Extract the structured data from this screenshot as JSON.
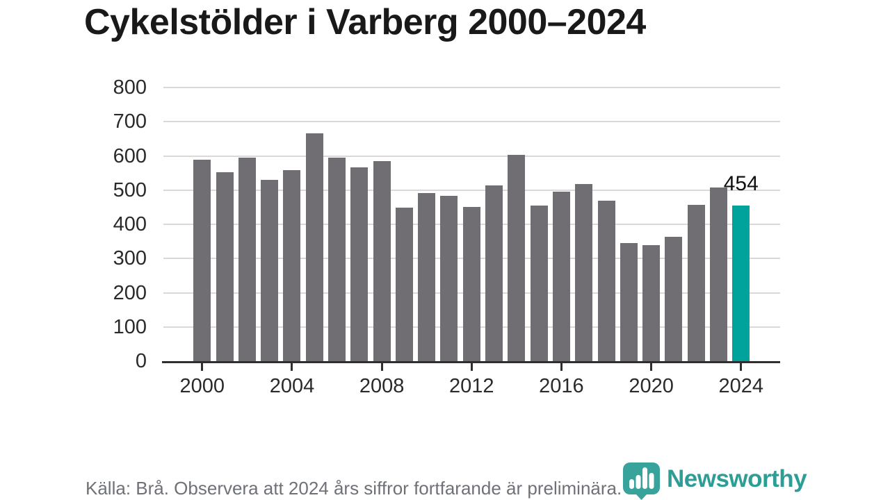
{
  "title": "Cykelstölder i Varberg 2000–2024",
  "chart_data": {
    "type": "bar",
    "categories": [
      2000,
      2001,
      2002,
      2003,
      2004,
      2005,
      2006,
      2007,
      2008,
      2009,
      2010,
      2011,
      2012,
      2013,
      2014,
      2015,
      2016,
      2017,
      2018,
      2019,
      2020,
      2021,
      2022,
      2023,
      2024
    ],
    "values": [
      588,
      553,
      594,
      530,
      559,
      667,
      594,
      567,
      584,
      448,
      491,
      484,
      451,
      513,
      603,
      455,
      496,
      518,
      470,
      345,
      340,
      363,
      457,
      507,
      454
    ],
    "title": "Cykelstölder i Varberg 2000–2024",
    "xlabel": "",
    "ylabel": "",
    "ylim": [
      0,
      800
    ],
    "yticks": [
      0,
      100,
      200,
      300,
      400,
      500,
      600,
      700,
      800
    ],
    "xticks": [
      2000,
      2004,
      2008,
      2012,
      2016,
      2020,
      2024
    ],
    "grid": "horizontal",
    "legend": "none",
    "bar_color": "#716e73",
    "highlight_year": 2024,
    "highlight_color": "#00a39c",
    "highlight_value_label": "454"
  },
  "footer": {
    "source_note": "Källa: Brå. Observera att 2024 års siffror fortfarande är preliminära."
  },
  "branding": {
    "wordmark": "Newsworthy",
    "logo_icon": "newsworthy-bar-chart-pin-icon",
    "logo_color": "#38a39b",
    "wordmark_color": "#2d9d96"
  }
}
